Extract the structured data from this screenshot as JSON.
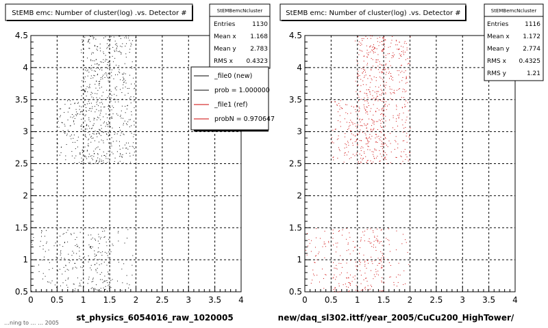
{
  "chart_data": [
    {
      "type": "scatter",
      "title": "StEMB emc: Number of cluster(log) .vs. Detector #",
      "xlabel": "st_physics_6054016_raw_1020005",
      "xlim": [
        0,
        4
      ],
      "ylim": [
        0.5,
        4.5
      ],
      "grid": true,
      "x_ticks": [
        "0",
        "0.5",
        "1",
        "1.5",
        "2",
        "2.5",
        "3",
        "3.5",
        "4"
      ],
      "y_ticks": [
        "0.5",
        "1",
        "1.5",
        "2",
        "2.5",
        "3",
        "3.5",
        "4",
        "4.5"
      ],
      "marker_color": "#000000",
      "density_note": "scatter box plot: x bins 0-2, y bands 0.5-1.5 and 2.5-4.5",
      "stats": {
        "name": "StEMBemcNcluster",
        "rows": [
          {
            "label": "Entries",
            "value": "1130"
          },
          {
            "label": "Mean x",
            "value": "1.168"
          },
          {
            "label": "Mean y",
            "value": "2.783"
          },
          {
            "label": "RMS x",
            "value": "0.4323"
          }
        ]
      },
      "legend": [
        {
          "label": "_file0 (new)",
          "color": "#000000"
        },
        {
          "label": "prob = 1.000000",
          "color": "#000000"
        },
        {
          "label": "_file1 (ref)",
          "color": "#cc0000"
        },
        {
          "label": "probN = 0.970647",
          "color": "#cc0000"
        }
      ]
    },
    {
      "type": "scatter",
      "title": "StEMB emc: Number of cluster(log) .vs. Detector #",
      "xlabel": "new/daq_sl302.ittf/year_2005/CuCu200_HighTower/",
      "xlim": [
        0,
        4
      ],
      "ylim": [
        0.5,
        4.5
      ],
      "grid": true,
      "x_ticks": [
        "0",
        "0.5",
        "1",
        "1.5",
        "2",
        "2.5",
        "3",
        "3.5",
        "4"
      ],
      "y_ticks": [
        "0.5",
        "1",
        "1.5",
        "2",
        "2.5",
        "3",
        "3.5",
        "4",
        "4.5"
      ],
      "marker_color": "#cc0000",
      "stats": {
        "name": "StEMBemcNcluster",
        "rows": [
          {
            "label": "Entries",
            "value": "1116"
          },
          {
            "label": "Mean x",
            "value": "1.172"
          },
          {
            "label": "Mean y",
            "value": "2.774"
          },
          {
            "label": "RMS x",
            "value": "0.4325"
          },
          {
            "label": "RMS y",
            "value": "1.21"
          }
        ]
      }
    }
  ],
  "footer_text": "…ning to  …  …  2005"
}
